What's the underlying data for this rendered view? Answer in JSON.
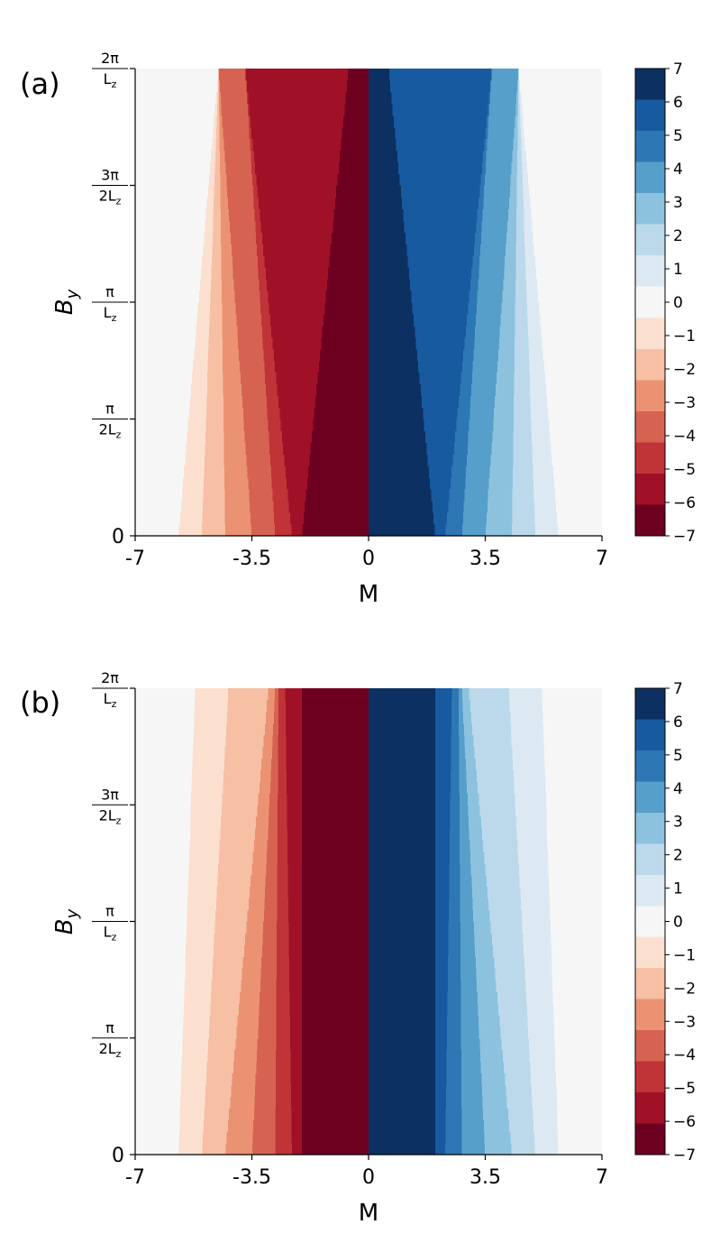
{
  "chart_data": [
    {
      "type": "heatmap",
      "panel_label": "(a)",
      "xlabel": "M",
      "ylabel": "B",
      "ylabel_sub": "y",
      "xlim": [
        -7,
        7
      ],
      "x_ticks": [
        {
          "value": -7,
          "label": "-7"
        },
        {
          "value": -3.5,
          "label": "-3.5"
        },
        {
          "value": 0,
          "label": "0"
        },
        {
          "value": 3.5,
          "label": "3.5"
        },
        {
          "value": 7,
          "label": "7"
        }
      ],
      "y_range": [
        "0",
        "2π/L_z"
      ],
      "y_ticks": [
        {
          "value": 0,
          "num": "0",
          "den": "",
          "sub": ""
        },
        {
          "value": 0.25,
          "num": "π",
          "den": "2L",
          "sub": "z"
        },
        {
          "value": 0.5,
          "num": "π",
          "den": "L",
          "sub": "z"
        },
        {
          "value": 0.75,
          "num": "3π",
          "den": "2L",
          "sub": "z"
        },
        {
          "value": 1,
          "num": "2π",
          "den": "L",
          "sub": "z"
        }
      ],
      "colorbar": {
        "min": -7,
        "max": 7,
        "ticks": [
          "7",
          "6",
          "5",
          "4",
          "3",
          "2",
          "1",
          "0",
          "−1",
          "−2",
          "−3",
          "−4",
          "−5",
          "−6",
          "−7"
        ]
      },
      "boundaries": {
        "description": "|M| at which the colour level steps from n to n-1, at By = 0 and By = 2π/Lz (linear between)",
        "levels": [
          1,
          2,
          3,
          4,
          5,
          6,
          7
        ],
        "M_at_By0": [
          5.7,
          5.0,
          4.3,
          3.5,
          2.8,
          2.3,
          2.0
        ],
        "M_at_By2pi": [
          4.5,
          4.5,
          4.5,
          4.5,
          3.7,
          3.7,
          0.6
        ]
      }
    },
    {
      "type": "heatmap",
      "panel_label": "(b)",
      "xlabel": "M",
      "ylabel": "B",
      "ylabel_sub": "y",
      "xlim": [
        -7,
        7
      ],
      "x_ticks": [
        {
          "value": -7,
          "label": "-7"
        },
        {
          "value": -3.5,
          "label": "-3.5"
        },
        {
          "value": 0,
          "label": "0"
        },
        {
          "value": 3.5,
          "label": "3.5"
        },
        {
          "value": 7,
          "label": "7"
        }
      ],
      "y_range": [
        "0",
        "2π/L_z"
      ],
      "y_ticks": [
        {
          "value": 0,
          "num": "0",
          "den": "",
          "sub": ""
        },
        {
          "value": 0.25,
          "num": "π",
          "den": "2L",
          "sub": "z"
        },
        {
          "value": 0.5,
          "num": "π",
          "den": "L",
          "sub": "z"
        },
        {
          "value": 0.75,
          "num": "3π",
          "den": "2L",
          "sub": "z"
        },
        {
          "value": 1,
          "num": "2π",
          "den": "L",
          "sub": "z"
        }
      ],
      "colorbar": {
        "min": -7,
        "max": 7,
        "ticks": [
          "7",
          "6",
          "5",
          "4",
          "3",
          "2",
          "1",
          "0",
          "−1",
          "−2",
          "−3",
          "−4",
          "−5",
          "−6",
          "−7"
        ]
      },
      "boundaries": {
        "description": "|M| at which the colour level steps from n to n-1, at By = 0 and By = 2π/Lz (linear between)",
        "levels": [
          1,
          2,
          3,
          4,
          5,
          6,
          7
        ],
        "M_at_By0": [
          5.7,
          5.0,
          4.3,
          3.5,
          2.8,
          2.3,
          2.0
        ],
        "M_at_By2pi": [
          5.2,
          4.2,
          3.0,
          2.8,
          2.7,
          2.5,
          2.0
        ]
      }
    }
  ],
  "colors": {
    "pos": [
      "#f6f6f6",
      "#dde9f2",
      "#bcd9eb",
      "#8dc2de",
      "#569fcb",
      "#2d77b4",
      "#175aa0",
      "#0c3062"
    ],
    "neg": [
      "#f6f6f6",
      "#fbe0d0",
      "#f7bfa3",
      "#eb9272",
      "#d66351",
      "#c03337",
      "#a01128",
      "#6d0021"
    ]
  }
}
